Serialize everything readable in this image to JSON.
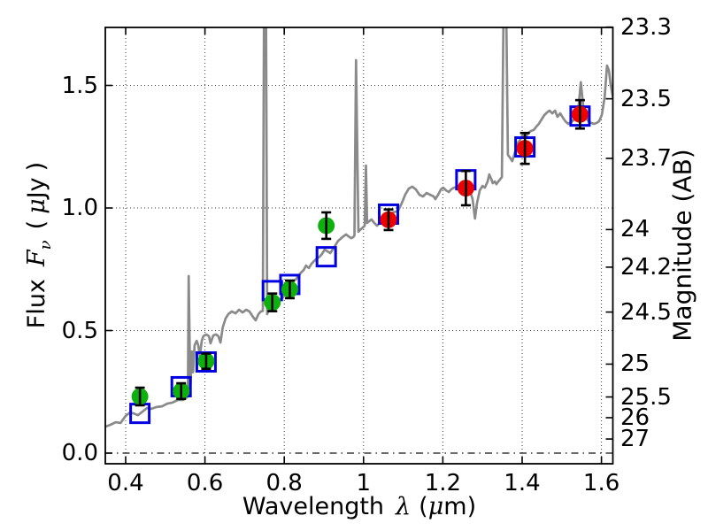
{
  "colors": {
    "background": "#ffffff",
    "spectrum": "#8a8a8a",
    "optical_point": "#0eb00e",
    "infrared_point": "#ee0000",
    "model_square": "#0000e1",
    "errorbar": "#000000",
    "grid": "#3a3a3a",
    "zero_line": "#111111",
    "frame": "#000000"
  },
  "chart_data": {
    "type": "line",
    "title": "",
    "xlabel": "Wavelength λ (μm)",
    "ylabel": "Flux Fν ( μJy )",
    "ylabel_right": "Magnitude (AB)",
    "xlabel_parts": {
      "word": "Wavelength",
      "symbol": "λ",
      "unit_open": "(",
      "unit_mu": "μ",
      "unit_rest": "m)"
    },
    "ylabel_left_parts": {
      "word": "Flux",
      "symbol": "F",
      "subscript": "ν",
      "unit_open": "(",
      "unit_mu": "μ",
      "unit_rest": "Jy",
      "unit_close": ")"
    },
    "xlim": [
      0.3487,
      1.6288
    ],
    "ylim": [
      -0.0433,
      1.7365
    ],
    "grid": "dotted",
    "legend": "none",
    "x_ticks": [
      {
        "v": 0.4,
        "label": "0.4"
      },
      {
        "v": 0.6,
        "label": "0.6"
      },
      {
        "v": 0.8,
        "label": "0.8"
      },
      {
        "v": 1.0,
        "label": "1"
      },
      {
        "v": 1.2,
        "label": "1.2"
      },
      {
        "v": 1.4,
        "label": "1.4"
      },
      {
        "v": 1.6,
        "label": "1.6"
      }
    ],
    "y_ticks_left": [
      {
        "v": 0.0,
        "label": "0.0"
      },
      {
        "v": 0.5,
        "label": "0.5"
      },
      {
        "v": 1.0,
        "label": "1.0"
      },
      {
        "v": 1.5,
        "label": "1.5"
      }
    ],
    "y_ticks_right_mag": [
      {
        "v": 23.3,
        "label": "23.3"
      },
      {
        "v": 23.5,
        "label": "23.5"
      },
      {
        "v": 23.7,
        "label": "23.7"
      },
      {
        "v": 24.0,
        "label": "24"
      },
      {
        "v": 24.2,
        "label": "24.2"
      },
      {
        "v": 24.5,
        "label": "24.5"
      },
      {
        "v": 25.0,
        "label": "25"
      },
      {
        "v": 25.5,
        "label": "25.5"
      },
      {
        "v": 26.0,
        "label": "26"
      },
      {
        "v": 27.0,
        "label": "27"
      }
    ],
    "right_axis_ab_zeropoint": 23.9,
    "series": [
      {
        "name": "model-spectrum",
        "type": "line",
        "color_key": "spectrum",
        "points": [
          [
            0.349,
            0.108
          ],
          [
            0.362,
            0.116
          ],
          [
            0.375,
            0.126
          ],
          [
            0.387,
            0.123
          ],
          [
            0.4,
            0.152
          ],
          [
            0.411,
            0.166
          ],
          [
            0.42,
            0.162
          ],
          [
            0.431,
            0.155
          ],
          [
            0.44,
            0.166
          ],
          [
            0.454,
            0.184
          ],
          [
            0.465,
            0.181
          ],
          [
            0.478,
            0.188
          ],
          [
            0.492,
            0.191
          ],
          [
            0.505,
            0.202
          ],
          [
            0.518,
            0.206
          ],
          [
            0.532,
            0.217
          ],
          [
            0.545,
            0.217
          ],
          [
            0.554,
            0.227
          ],
          [
            0.557,
            0.231
          ],
          [
            0.559,
            0.722
          ],
          [
            0.563,
            0.26
          ],
          [
            0.567,
            0.415
          ],
          [
            0.57,
            0.33
          ],
          [
            0.574,
            0.44
          ],
          [
            0.579,
            0.458
          ],
          [
            0.583,
            0.44
          ],
          [
            0.587,
            0.397
          ],
          [
            0.592,
            0.458
          ],
          [
            0.596,
            0.477
          ],
          [
            0.603,
            0.484
          ],
          [
            0.61,
            0.477
          ],
          [
            0.614,
            0.448
          ],
          [
            0.621,
            0.48
          ],
          [
            0.628,
            0.484
          ],
          [
            0.634,
            0.477
          ],
          [
            0.639,
            0.451
          ],
          [
            0.645,
            0.513
          ],
          [
            0.652,
            0.549
          ],
          [
            0.659,
            0.567
          ],
          [
            0.668,
            0.578
          ],
          [
            0.677,
            0.57
          ],
          [
            0.686,
            0.585
          ],
          [
            0.695,
            0.574
          ],
          [
            0.704,
            0.585
          ],
          [
            0.712,
            0.578
          ],
          [
            0.721,
            0.556
          ],
          [
            0.728,
            0.542
          ],
          [
            0.735,
            0.567
          ],
          [
            0.741,
            0.578
          ],
          [
            0.746,
            0.58
          ],
          [
            0.749,
            1.78
          ],
          [
            0.754,
            1.78
          ],
          [
            0.757,
            0.567
          ],
          [
            0.762,
            0.592
          ],
          [
            0.77,
            0.606
          ],
          [
            0.779,
            0.614
          ],
          [
            0.788,
            0.621
          ],
          [
            0.797,
            0.635
          ],
          [
            0.806,
            0.657
          ],
          [
            0.815,
            0.675
          ],
          [
            0.822,
            0.7
          ],
          [
            0.829,
            0.708
          ],
          [
            0.835,
            0.722
          ],
          [
            0.842,
            0.736
          ],
          [
            0.849,
            0.747
          ],
          [
            0.855,
            0.765
          ],
          [
            0.862,
            0.755
          ],
          [
            0.869,
            0.773
          ],
          [
            0.875,
            0.783
          ],
          [
            0.882,
            0.794
          ],
          [
            0.889,
            0.801
          ],
          [
            0.895,
            0.812
          ],
          [
            0.902,
            0.83
          ],
          [
            0.909,
            0.823
          ],
          [
            0.916,
            0.816
          ],
          [
            0.922,
            0.83
          ],
          [
            0.929,
            0.848
          ],
          [
            0.936,
            0.866
          ],
          [
            0.942,
            0.874
          ],
          [
            0.949,
            0.884
          ],
          [
            0.956,
            0.892
          ],
          [
            0.962,
            0.884
          ],
          [
            0.969,
            0.877
          ],
          [
            0.974,
            0.881
          ],
          [
            0.977,
            0.888
          ],
          [
            0.981,
            1.603
          ],
          [
            0.987,
            0.903
          ],
          [
            0.991,
            0.91
          ],
          [
            0.996,
            0.917
          ],
          [
            1.003,
            0.928
          ],
          [
            1.006,
            1.173
          ],
          [
            1.009,
            0.939
          ],
          [
            1.014,
            0.946
          ],
          [
            1.02,
            0.953
          ],
          [
            1.027,
            0.939
          ],
          [
            1.034,
            0.928
          ],
          [
            1.041,
            0.939
          ],
          [
            1.047,
            0.946
          ],
          [
            1.054,
            0.953
          ],
          [
            1.061,
            0.96
          ],
          [
            1.067,
            0.971
          ],
          [
            1.074,
            0.982
          ],
          [
            1.081,
            0.985
          ],
          [
            1.087,
            0.989
          ],
          [
            1.096,
            1.018
          ],
          [
            1.105,
            1.054
          ],
          [
            1.114,
            1.079
          ],
          [
            1.123,
            1.087
          ],
          [
            1.132,
            1.076
          ],
          [
            1.141,
            1.054
          ],
          [
            1.15,
            1.047
          ],
          [
            1.159,
            1.061
          ],
          [
            1.168,
            1.054
          ],
          [
            1.177,
            1.047
          ],
          [
            1.181,
            1.036
          ],
          [
            1.188,
            1.054
          ],
          [
            1.195,
            1.076
          ],
          [
            1.201,
            1.083
          ],
          [
            1.208,
            1.072
          ],
          [
            1.215,
            1.065
          ],
          [
            1.221,
            1.076
          ],
          [
            1.228,
            1.083
          ],
          [
            1.235,
            1.083
          ],
          [
            1.241,
            1.072
          ],
          [
            1.248,
            1.083
          ],
          [
            1.255,
            1.09
          ],
          [
            1.262,
            1.083
          ],
          [
            1.268,
            1.072
          ],
          [
            1.275,
            1.036
          ],
          [
            1.281,
            0.957
          ],
          [
            1.286,
            1.018
          ],
          [
            1.293,
            1.072
          ],
          [
            1.3,
            1.09
          ],
          [
            1.306,
            1.083
          ],
          [
            1.313,
            1.108
          ],
          [
            1.317,
            1.137
          ],
          [
            1.322,
            1.119
          ],
          [
            1.326,
            1.101
          ],
          [
            1.331,
            1.108
          ],
          [
            1.335,
            1.097
          ],
          [
            1.34,
            1.108
          ],
          [
            1.344,
            1.116
          ],
          [
            1.349,
            1.126
          ],
          [
            1.353,
            1.78
          ],
          [
            1.36,
            1.78
          ],
          [
            1.364,
            1.217
          ],
          [
            1.369,
            1.206
          ],
          [
            1.375,
            1.191
          ],
          [
            1.382,
            1.227
          ],
          [
            1.389,
            1.264
          ],
          [
            1.396,
            1.282
          ],
          [
            1.402,
            1.3
          ],
          [
            1.409,
            1.289
          ],
          [
            1.416,
            1.307
          ],
          [
            1.422,
            1.314
          ],
          [
            1.429,
            1.318
          ],
          [
            1.436,
            1.332
          ],
          [
            1.442,
            1.343
          ],
          [
            1.449,
            1.361
          ],
          [
            1.456,
            1.379
          ],
          [
            1.463,
            1.39
          ],
          [
            1.469,
            1.397
          ],
          [
            1.476,
            1.386
          ],
          [
            1.483,
            1.397
          ],
          [
            1.489,
            1.372
          ],
          [
            1.496,
            1.386
          ],
          [
            1.503,
            1.368
          ],
          [
            1.509,
            1.354
          ],
          [
            1.516,
            1.343
          ],
          [
            1.523,
            1.35
          ],
          [
            1.532,
            1.361
          ],
          [
            1.541,
            1.39
          ],
          [
            1.548,
            1.513
          ],
          [
            1.554,
            1.415
          ],
          [
            1.561,
            1.372
          ],
          [
            1.567,
            1.354
          ],
          [
            1.574,
            1.347
          ],
          [
            1.581,
            1.343
          ],
          [
            1.588,
            1.347
          ],
          [
            1.594,
            1.354
          ],
          [
            1.601,
            1.379
          ],
          [
            1.608,
            1.451
          ],
          [
            1.614,
            1.581
          ],
          [
            1.619,
            1.56
          ],
          [
            1.623,
            1.505
          ],
          [
            1.629,
            1.451
          ]
        ]
      },
      {
        "name": "observed-photometry-optical",
        "type": "scatter",
        "marker": "circle",
        "color_key": "optical_point",
        "points": [
          {
            "x": 0.436,
            "y": 0.231,
            "err": 0.036
          },
          {
            "x": 0.54,
            "y": 0.253,
            "err": 0.032
          },
          {
            "x": 0.603,
            "y": 0.375,
            "err": 0.031
          },
          {
            "x": 0.77,
            "y": 0.615,
            "err": 0.036
          },
          {
            "x": 0.814,
            "y": 0.668,
            "err": 0.036
          },
          {
            "x": 0.906,
            "y": 0.928,
            "err": 0.054
          }
        ]
      },
      {
        "name": "observed-photometry-infrared",
        "type": "scatter",
        "marker": "circle",
        "color_key": "infrared_point",
        "points": [
          {
            "x": 1.063,
            "y": 0.952,
            "err": 0.042
          },
          {
            "x": 1.258,
            "y": 1.081,
            "err": 0.07
          },
          {
            "x": 1.407,
            "y": 1.243,
            "err": 0.063
          },
          {
            "x": 1.546,
            "y": 1.382,
            "err": 0.058
          }
        ]
      },
      {
        "name": "model-photometry",
        "type": "scatter",
        "marker": "open-square",
        "color_key": "model_square",
        "points": [
          {
            "x": 0.436,
            "y": 0.162
          },
          {
            "x": 0.54,
            "y": 0.271
          },
          {
            "x": 0.603,
            "y": 0.372
          },
          {
            "x": 0.77,
            "y": 0.663
          },
          {
            "x": 0.814,
            "y": 0.688
          },
          {
            "x": 0.906,
            "y": 0.801
          },
          {
            "x": 1.063,
            "y": 0.975
          },
          {
            "x": 1.258,
            "y": 1.115
          },
          {
            "x": 1.407,
            "y": 1.249
          },
          {
            "x": 1.546,
            "y": 1.375
          }
        ]
      }
    ]
  }
}
